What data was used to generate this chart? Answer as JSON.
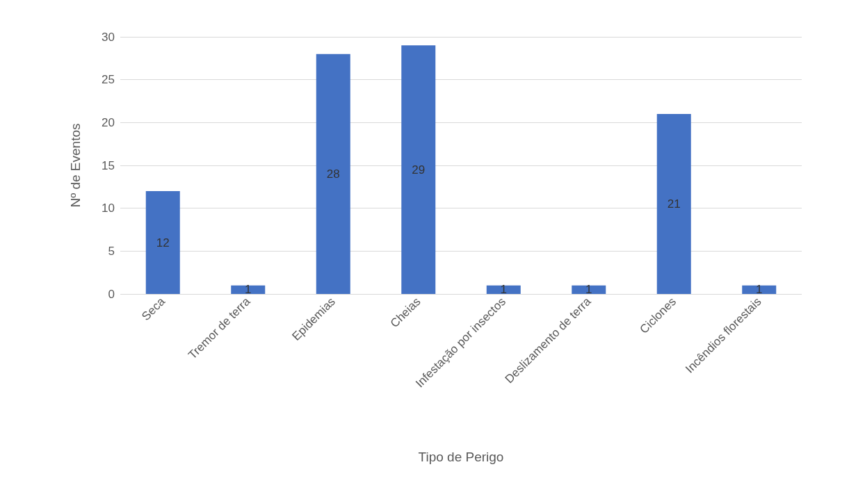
{
  "chart_data": {
    "type": "bar",
    "xlabel": "Tipo de Perigo",
    "ylabel": "Nº de Eventos",
    "categories": [
      "Seca",
      "Tremor de terra",
      "Epidemias",
      "Cheias",
      "Infestação por insectos",
      "Deslizamento de terra",
      "Ciclones",
      "Incêndios florestais"
    ],
    "values": [
      12,
      1,
      28,
      29,
      1,
      1,
      21,
      1
    ],
    "color": "#4472c4",
    "data_labels": true,
    "ylim": [
      0,
      30
    ],
    "yticks": [
      0,
      5,
      10,
      15,
      20,
      25,
      30
    ],
    "grid": "y"
  }
}
